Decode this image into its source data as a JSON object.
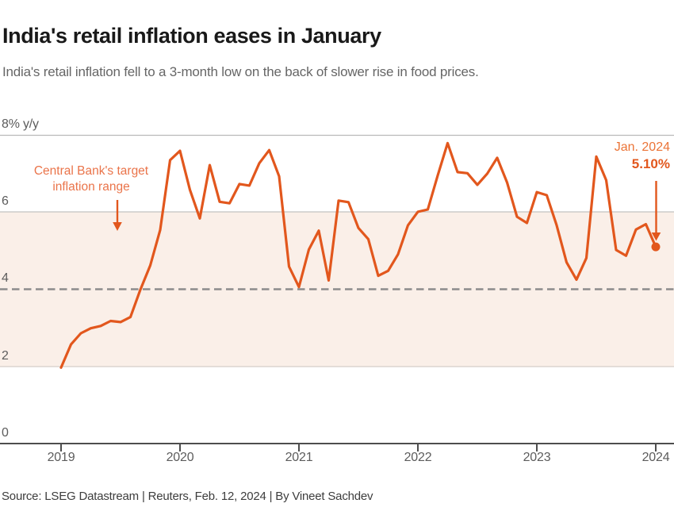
{
  "header": {
    "title": "India's retail inflation eases in January",
    "subtitle": "India's retail inflation fell to a 3-month low on the back of slower rise in food prices."
  },
  "annotations": {
    "target_range": "Central Bank's target inflation range",
    "latest_label": "Jan. 2024",
    "latest_value": "5.10%"
  },
  "y_axis": {
    "labels": [
      "8% y/y",
      "6",
      "4",
      "2",
      "0"
    ]
  },
  "x_axis": {
    "labels": [
      "2019",
      "2020",
      "2021",
      "2022",
      "2023",
      "2024"
    ]
  },
  "footer": {
    "source": "Source: LSEG Datastream | Reuters, Feb. 12, 2024 | By Vineet Sachdev"
  },
  "colors": {
    "line": "#e2571d",
    "latest_dot": "#e2571d",
    "arrow": "#e2571d",
    "annotation_text": "#ea744a",
    "target_band_fill": "#faefe8",
    "gridline": "#c2c2c2",
    "dashed_line": "#8c8c8c",
    "axis": "#4d4d4d",
    "title_text": "#191919",
    "subtitle_text": "#666666"
  },
  "chart_data": {
    "type": "line",
    "title": "India's retail inflation eases in January",
    "xlabel": "",
    "ylabel": "% y/y",
    "ylim": [
      0,
      8
    ],
    "y_ticks": [
      0,
      2,
      4,
      6,
      8
    ],
    "x_ticks": [
      "2019",
      "2020",
      "2021",
      "2022",
      "2023",
      "2024"
    ],
    "grid": true,
    "target_band": [
      2,
      6
    ],
    "dashed_midline": 4,
    "latest": {
      "label": "Jan. 2024",
      "value": 5.1
    },
    "series": [
      {
        "name": "India retail inflation (CPI, % y/y)",
        "start": "2019-01",
        "frequency": "monthly",
        "values": [
          1.97,
          2.57,
          2.86,
          2.99,
          3.05,
          3.18,
          3.15,
          3.28,
          3.99,
          4.62,
          5.54,
          7.35,
          7.59,
          6.58,
          5.84,
          7.22,
          6.27,
          6.23,
          6.73,
          6.69,
          7.27,
          7.61,
          6.93,
          4.59,
          4.06,
          5.03,
          5.52,
          4.23,
          6.3,
          6.26,
          5.59,
          5.3,
          4.35,
          4.48,
          4.91,
          5.66,
          6.01,
          6.07,
          6.95,
          7.79,
          7.04,
          7.01,
          6.71,
          7.0,
          7.41,
          6.77,
          5.88,
          5.72,
          6.52,
          6.44,
          5.66,
          4.7,
          4.25,
          4.81,
          7.44,
          6.83,
          5.02,
          4.87,
          5.55,
          5.69,
          5.1
        ]
      }
    ]
  }
}
